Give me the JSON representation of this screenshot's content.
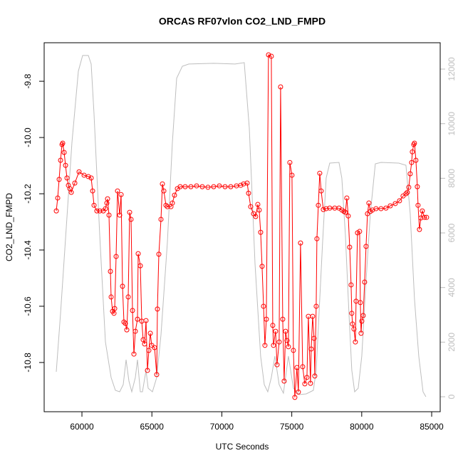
{
  "chart_data": {
    "type": "line",
    "title": "ORCAS RF07vlon CO2_LND_FMPD",
    "x_label": "UTC Seconds",
    "y_label": "CO2_LND_FMPD",
    "xlim": [
      57300,
      85610
    ],
    "xticks": [
      60000,
      65000,
      70000,
      75000,
      80000,
      85000
    ],
    "ylim": [
      -10.975,
      -9.663
    ],
    "yticks": [
      -10.8,
      -10.6,
      -10.4,
      -10.2,
      {
        "value": -10,
        "label": "-10.0"
      },
      -9.8
    ],
    "y2lim": [
      -548,
      12965
    ],
    "y2ticks": [
      0,
      2000,
      4000,
      6000,
      8000,
      10000,
      12000
    ],
    "series": [
      {
        "color": "#bebebe",
        "axis": "y2",
        "markers": false,
        "x": [
          58168,
          58473,
          58880,
          59287,
          59745,
          60051,
          60458,
          60662,
          60865,
          61273,
          61680,
          62087,
          62392,
          62698,
          62952,
          63156,
          63360,
          63563,
          63818,
          63970,
          64174,
          64327,
          64581,
          64734,
          65039,
          65345,
          65650,
          66108,
          66464,
          66770,
          67177,
          67635,
          69417,
          70944,
          71605,
          71962,
          72369,
          72776,
          73031,
          73285,
          73539,
          73794,
          74099,
          74404,
          74761,
          75117,
          75524,
          76033,
          76542,
          76746,
          76950,
          77204,
          77458,
          77713,
          78375,
          78579,
          78833,
          79087,
          79291,
          79495,
          79749,
          80004,
          80258,
          80615,
          80971,
          81378,
          82651,
          83160,
          83465,
          83770,
          84076,
          84381,
          84585
        ],
        "values": [
          913,
          3052,
          6183,
          9314,
          11923,
          12497,
          12497,
          12184,
          10357,
          5922,
          2009,
          704,
          235,
          183,
          444,
          1357,
          574,
          183,
          704,
          1357,
          183,
          183,
          965,
          313,
          183,
          704,
          2270,
          5661,
          9314,
          11662,
          12105,
          12184,
          12210,
          12184,
          12236,
          9836,
          4879,
          1487,
          444,
          183,
          704,
          1487,
          444,
          130,
          1487,
          313,
          78,
          104,
          235,
          965,
          3052,
          5661,
          8009,
          8557,
          8583,
          8009,
          5922,
          3052,
          965,
          183,
          313,
          1487,
          3835,
          6705,
          8531,
          8583,
          8557,
          8479,
          6705,
          3574,
          1487,
          183,
          0
        ]
      },
      {
        "color": "#ff0000",
        "markers": true,
        "x": [
          58168,
          58269,
          58371,
          58473,
          58575,
          58626,
          58728,
          58829,
          58931,
          59033,
          59135,
          59237,
          59491,
          59796,
          60153,
          60458,
          60662,
          60764,
          60865,
          61069,
          61273,
          61527,
          61680,
          61782,
          61832,
          61934,
          62036,
          62087,
          62189,
          62291,
          62341,
          62443,
          62545,
          62698,
          62800,
          62901,
          63003,
          63105,
          63207,
          63309,
          63410,
          63512,
          63614,
          63716,
          63818,
          63970,
          64021,
          64174,
          64276,
          64377,
          64479,
          64581,
          64683,
          64785,
          64886,
          64988,
          65192,
          65345,
          65395,
          65497,
          65650,
          65752,
          65854,
          66006,
          66108,
          66363,
          66464,
          66617,
          66821,
          67024,
          67381,
          67788,
          68195,
          68602,
          69009,
          69417,
          69824,
          70231,
          70638,
          71045,
          71351,
          71554,
          71809,
          71911,
          72063,
          72267,
          72420,
          72572,
          72674,
          72776,
          72878,
          72980,
          73081,
          73183,
          73336,
          73539,
          73641,
          73692,
          73845,
          73947,
          74099,
          74201,
          74354,
          74455,
          74557,
          74659,
          74761,
          74862,
          75015,
          75117,
          75219,
          75371,
          75473,
          75626,
          75779,
          75932,
          76084,
          76186,
          76339,
          76390,
          76491,
          76593,
          76644,
          76746,
          76797,
          76899,
          77000,
          77102,
          77255,
          77458,
          77713,
          78070,
          78375,
          78579,
          78731,
          78833,
          78935,
          79037,
          79138,
          79240,
          79291,
          79342,
          79444,
          79545,
          79596,
          79698,
          79851,
          79902,
          79953,
          80004,
          80105,
          80207,
          80309,
          80411,
          80513,
          80615,
          80767,
          81022,
          81378,
          81734,
          82040,
          82396,
          82701,
          82956,
          83160,
          83261,
          83363,
          83465,
          83567,
          83618,
          83719,
          83770,
          83872,
          83974,
          84025,
          84127,
          84229,
          84330,
          84483,
          84636
        ],
        "values": [
          -10.261,
          -10.215,
          -10.149,
          -10.081,
          -10.025,
          -10.02,
          -10.053,
          -10.099,
          -10.144,
          -10.17,
          -10.182,
          -10.195,
          -10.162,
          -10.122,
          -10.134,
          -10.139,
          -10.144,
          -10.19,
          -10.241,
          -10.261,
          -10.261,
          -10.261,
          -10.253,
          -10.233,
          -10.218,
          -10.276,
          -10.476,
          -10.567,
          -10.618,
          -10.625,
          -10.608,
          -10.423,
          -10.19,
          -10.276,
          -10.203,
          -10.529,
          -10.656,
          -10.661,
          -10.684,
          -10.567,
          -10.266,
          -10.291,
          -10.615,
          -10.77,
          -10.689,
          -10.646,
          -10.413,
          -10.456,
          -10.653,
          -10.719,
          -10.734,
          -10.651,
          -10.828,
          -10.757,
          -10.696,
          -10.739,
          -10.747,
          -10.843,
          -10.61,
          -10.415,
          -10.291,
          -10.165,
          -10.19,
          -10.241,
          -10.246,
          -10.246,
          -10.233,
          -10.205,
          -10.182,
          -10.175,
          -10.175,
          -10.175,
          -10.172,
          -10.175,
          -10.177,
          -10.175,
          -10.172,
          -10.175,
          -10.175,
          -10.172,
          -10.17,
          -10.165,
          -10.162,
          -10.198,
          -10.246,
          -10.271,
          -10.281,
          -10.238,
          -10.258,
          -10.337,
          -10.458,
          -10.6,
          -10.739,
          -10.646,
          -9.706,
          -9.711,
          -10.668,
          -10.739,
          -10.689,
          -10.808,
          -10.727,
          -9.82,
          -10.646,
          -10.866,
          -10.689,
          -10.722,
          -10.744,
          -10.089,
          -10.134,
          -10.757,
          -10.924,
          -10.818,
          -10.905,
          -10.375,
          -10.815,
          -10.876,
          -10.853,
          -10.636,
          -10.874,
          -10.752,
          -10.636,
          -10.714,
          -10.848,
          -10.6,
          -10.36,
          -10.241,
          -10.127,
          -10.19,
          -10.256,
          -10.253,
          -10.251,
          -10.251,
          -10.251,
          -10.258,
          -10.263,
          -10.266,
          -10.215,
          -10.279,
          -10.39,
          -10.524,
          -10.625,
          -10.663,
          -10.681,
          -10.727,
          -10.582,
          -10.339,
          -10.334,
          -10.587,
          -10.696,
          -10.653,
          -10.633,
          -10.514,
          -10.387,
          -10.271,
          -10.233,
          -10.263,
          -10.258,
          -10.253,
          -10.253,
          -10.251,
          -10.243,
          -10.235,
          -10.225,
          -10.208,
          -10.2,
          -10.195,
          -10.177,
          -10.129,
          -10.089,
          -10.051,
          -10.025,
          -10.02,
          -10.081,
          -10.175,
          -10.241,
          -10.327,
          -10.286,
          -10.261,
          -10.284,
          -10.284
        ]
      }
    ]
  }
}
